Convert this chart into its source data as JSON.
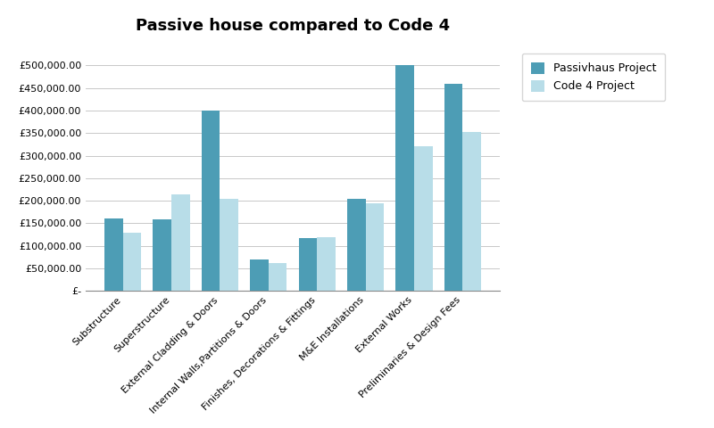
{
  "title": "Passive house compared to Code 4",
  "categories": [
    "Substructure",
    "Superstructure",
    "External Cladding & Doors",
    "Internal Walls,Partitions & Doors",
    "Finishes, Decorations & Fittings",
    "M&E Installations",
    "External Works",
    "Preliminaries & Design Fees"
  ],
  "passivhaus": [
    160000,
    158000,
    400000,
    70000,
    118000,
    205000,
    500000,
    460000
  ],
  "code4": [
    130000,
    215000,
    205000,
    63000,
    120000,
    195000,
    320000,
    352000
  ],
  "passivhaus_color": "#4d9db5",
  "code4_color": "#b8dde8",
  "ylim": [
    0,
    550000
  ],
  "yticks": [
    0,
    50000,
    100000,
    150000,
    200000,
    250000,
    300000,
    350000,
    400000,
    450000,
    500000
  ],
  "legend_labels": [
    "Passivhaus Project",
    "Code 4 Project"
  ],
  "background_color": "#ffffff",
  "title_fontsize": 13,
  "tick_fontsize": 8,
  "legend_fontsize": 9,
  "bar_width": 0.38
}
